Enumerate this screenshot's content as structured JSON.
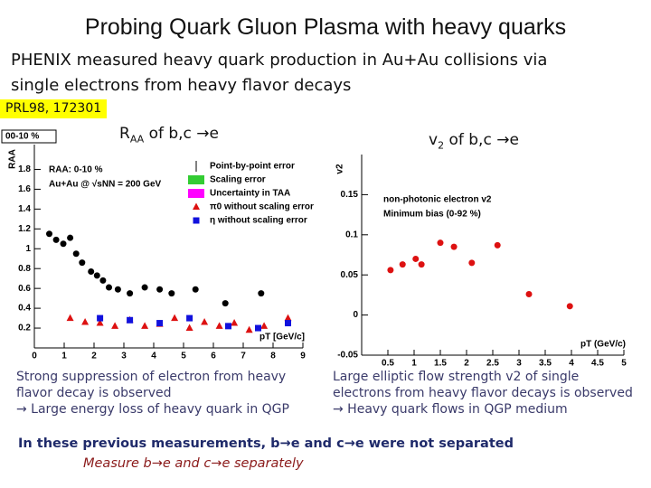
{
  "slide": {
    "title": "Probing Quark Gluon Plasma with heavy quarks",
    "intro_lines": [
      "PHENIX measured heavy quark production in Au+Au collisions via",
      "single electrons from heavy flavor decays"
    ],
    "reference": "PRL98, 172301",
    "left_heading": {
      "main": "R",
      "sub": "AA",
      "rest": " of b,c →e"
    },
    "right_heading": {
      "main": "v",
      "sub": "2",
      "rest": " of  b,c →e"
    },
    "left_caption": [
      "Strong suppression of electron from heavy",
      "flavor decay is observed",
      "→ Large energy loss of heavy quark in QGP"
    ],
    "right_caption": [
      "Large elliptic flow strength v2 of single",
      "electrons from heavy flavor decays is observed",
      "→ Heavy quark flows in QGP medium"
    ],
    "summary": "In these  previous measurements, b→e and c→e were not separated",
    "summary_italic": "Measure b→e and c→e separately"
  },
  "chart_data": [
    {
      "type": "scatter",
      "corner_label": "00-10 %",
      "ylabel": "RAA",
      "xlabel": "pT [GeV/c]",
      "legend_title": [
        "RAA: 0-10 %",
        "Au+Au @ √sNN = 200 GeV"
      ],
      "legend_items": [
        {
          "text": "Point-by-point error",
          "color": "#000000"
        },
        {
          "text": "Scaling error",
          "color": "#33cc33"
        },
        {
          "text": "Uncertainty in TAA",
          "color": "#ff00ff"
        }
      ],
      "xlim": [
        0,
        9
      ],
      "ylim": [
        0,
        2.05
      ],
      "xticks": [
        0,
        1,
        2,
        3,
        4,
        5,
        6,
        7,
        8,
        9
      ],
      "yticks": [
        0.2,
        0.4,
        0.6,
        0.8,
        1,
        1.2,
        1.4,
        1.6,
        1.8
      ],
      "series": [
        {
          "color": "#000000",
          "marker": "circle",
          "x": [
            0.5,
            0.73,
            0.97,
            1.2,
            1.4,
            1.6,
            1.9,
            2.1,
            2.3,
            2.5,
            2.8,
            3.2,
            3.7,
            4.2,
            4.6,
            5.4,
            6.4,
            7.6
          ],
          "values": [
            1.15,
            1.09,
            1.05,
            1.11,
            0.95,
            0.86,
            0.77,
            0.73,
            0.68,
            0.61,
            0.59,
            0.55,
            0.61,
            0.59,
            0.55,
            0.59,
            0.45,
            0.55
          ]
        },
        {
          "name": "π0 without scaling error",
          "color": "#dd1111",
          "marker": "triangle",
          "x": [
            1.2,
            1.7,
            2.2,
            2.7,
            3.2,
            3.7,
            4.2,
            4.7,
            5.2,
            5.7,
            6.2,
            6.7,
            7.2,
            7.7,
            8.5
          ],
          "values": [
            0.3,
            0.26,
            0.25,
            0.22,
            0.28,
            0.22,
            0.24,
            0.3,
            0.2,
            0.26,
            0.22,
            0.25,
            0.18,
            0.22,
            0.3
          ]
        },
        {
          "name": "η without scaling error",
          "color": "#1111dd",
          "marker": "square",
          "x": [
            2.2,
            3.2,
            4.2,
            5.2,
            6.5,
            7.5,
            8.5
          ],
          "values": [
            0.3,
            0.28,
            0.25,
            0.3,
            0.22,
            0.2,
            0.25
          ]
        }
      ]
    },
    {
      "type": "scatter",
      "ylabel": "v2",
      "xlabel": "pT (GeV/c)",
      "legend_title": [
        "non-photonic electron v2",
        "Minimum bias (0-92 %)"
      ],
      "xlim": [
        0,
        5
      ],
      "ylim": [
        -0.05,
        0.2
      ],
      "xticks": [
        0.5,
        1,
        1.5,
        2,
        2.5,
        3,
        3.5,
        4,
        4.5,
        5
      ],
      "yticks": [
        -0.05,
        0,
        0.05,
        0.1,
        0.15
      ],
      "series": [
        {
          "color": "#dd1111",
          "marker": "circle",
          "x": [
            0.55,
            0.78,
            1.03,
            1.14,
            1.5,
            1.76,
            2.1,
            2.59,
            3.19,
            3.97
          ],
          "values": [
            0.056,
            0.063,
            0.07,
            0.063,
            0.09,
            0.085,
            0.065,
            0.087,
            0.026,
            0.011
          ]
        }
      ]
    }
  ]
}
